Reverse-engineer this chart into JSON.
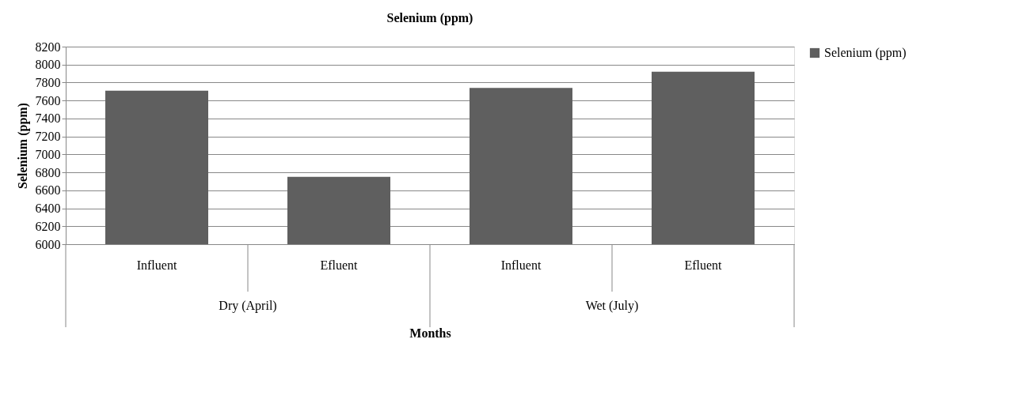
{
  "chart_data": {
    "type": "bar",
    "title": "Selenium (ppm)",
    "xlabel": "Months",
    "ylabel": "Selenium (ppm)",
    "categories": [
      "Influent",
      "Efluent",
      "Influent",
      "Efluent"
    ],
    "annotations": [
      "Dry (April)",
      "Wet (July)"
    ],
    "series": [
      {
        "name": "Selenium (ppm)",
        "color": "#5f5f5f",
        "values": [
          7710,
          6750,
          7740,
          7920
        ]
      }
    ],
    "ylim": [
      6000,
      8200
    ],
    "yticks": [
      6000,
      6200,
      6400,
      6600,
      6800,
      7000,
      7200,
      7400,
      7600,
      7800,
      8000,
      8200
    ],
    "grid": "y",
    "legend": "right"
  }
}
